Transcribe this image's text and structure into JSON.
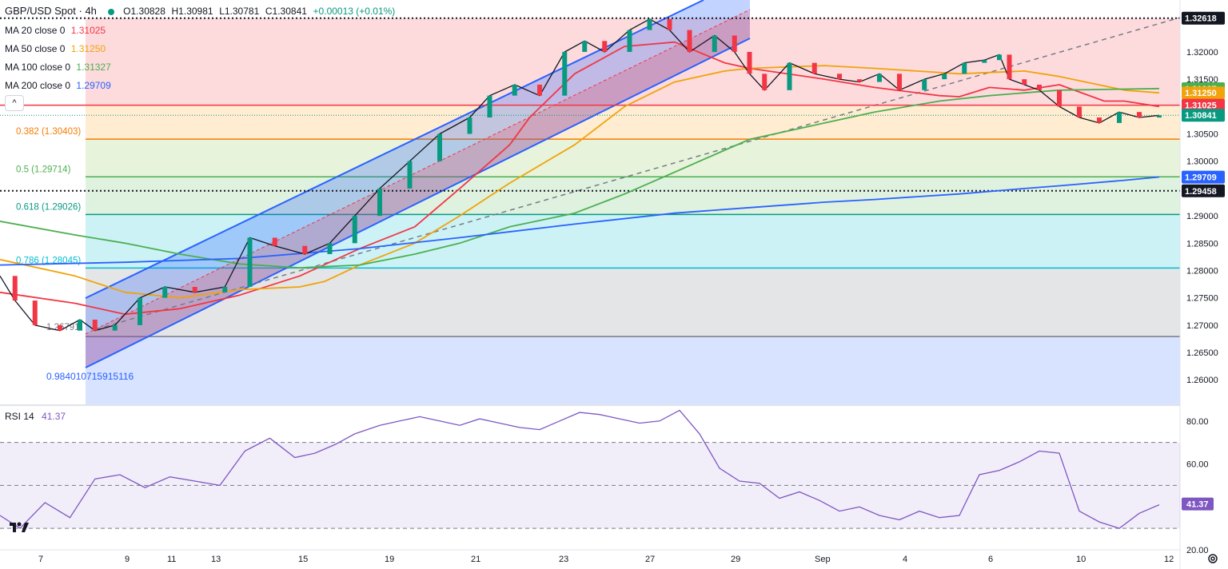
{
  "header": {
    "symbol": "GBP/USD Spot",
    "timeframe": "4h",
    "open": "O1.30828",
    "high": "H1.30981",
    "low": "L1.30781",
    "close": "C1.30841",
    "change": "+0.00013 (+0.01%)"
  },
  "indicators": [
    {
      "label": "MA 20 close 0",
      "value": "1.31025",
      "color": "#f23645"
    },
    {
      "label": "MA 50 close 0",
      "value": "1.31250",
      "color": "#f0a30a"
    },
    {
      "label": "MA 100 close 0",
      "value": "1.31327",
      "color": "#4caf50"
    },
    {
      "label": "MA 200 close 0",
      "value": "1.29709",
      "color": "#2962ff"
    }
  ],
  "collapse_label": "^",
  "rsi": {
    "label": "RSI 14",
    "value": "41.37",
    "color": "#7e57c2"
  },
  "chart_data": {
    "type": "line",
    "y_range": [
      1.2555,
      1.3295
    ],
    "price_ticks": [
      "1.32000",
      "1.31500",
      "1.30500",
      "1.30000",
      "1.29000",
      "1.28500",
      "1.28000",
      "1.27500",
      "1.27000",
      "1.26500",
      "1.26000"
    ],
    "x_ticks": [
      "7",
      "9",
      "11",
      "13",
      "15",
      "19",
      "21",
      "23",
      "27",
      "29",
      "Sep",
      "4",
      "6",
      "10",
      "12"
    ],
    "fib_levels": [
      {
        "ratio": "0.382",
        "label": "0.382 (1.30403)",
        "price": 1.30403,
        "color": "#f57c00"
      },
      {
        "ratio": "0.5",
        "label": "0.5 (1.29714)",
        "price": 1.29714,
        "color": "#4caf50"
      },
      {
        "ratio": "0.618",
        "label": "0.618 (1.29026)",
        "price": 1.29026,
        "color": "#089981"
      },
      {
        "ratio": "0.786",
        "label": "0.786 (1.28045)",
        "price": 1.28045,
        "color": "#00bcd4"
      },
      {
        "ratio": "1",
        "label": "1.26791",
        "price": 1.26791,
        "color": "#787b86"
      }
    ],
    "fib_extension_label": "0.984010715915116",
    "horizontal_lines": [
      {
        "price": 1.32618,
        "style": "dotted",
        "color": "#131722"
      },
      {
        "price": 1.29458,
        "style": "dotted",
        "color": "#131722"
      },
      {
        "price": 1.31025,
        "style": "solid",
        "color": "#f23645"
      }
    ],
    "price_badges": [
      {
        "text": "1.32618",
        "price": 1.32618,
        "bg": "#131722"
      },
      {
        "text": "1.31327",
        "price": 1.31327,
        "bg": "#4caf50"
      },
      {
        "text": "1.31250",
        "price": 1.3125,
        "bg": "#f0a30a"
      },
      {
        "text": "1.31025",
        "price": 1.31025,
        "bg": "#f23645"
      },
      {
        "text": "1.30841",
        "price": 1.30841,
        "bg": "#089981"
      },
      {
        "text": "1.29709",
        "price": 1.29709,
        "bg": "#2962ff"
      },
      {
        "text": "1.29458",
        "price": 1.29458,
        "bg": "#131722"
      }
    ],
    "series": [
      {
        "name": "MA 20 close 0",
        "color": "#f23645",
        "x": [
          0,
          1.5,
          2.5,
          3.6,
          4.8,
          6,
          7.2,
          8.3,
          9.2,
          10.2,
          10.6,
          11.5,
          12.5,
          13.5,
          14.5,
          15,
          16.5,
          17.5,
          18.8,
          19.2,
          19.8,
          20.5,
          21.2,
          22.1,
          22.5,
          23.2
        ],
        "y": [
          1.276,
          1.274,
          1.272,
          1.273,
          1.2755,
          1.279,
          1.284,
          1.288,
          1.295,
          1.303,
          1.308,
          1.316,
          1.321,
          1.3218,
          1.318,
          1.317,
          1.315,
          1.3135,
          1.312,
          1.3118,
          1.3135,
          1.313,
          1.314,
          1.311,
          1.311,
          1.31
        ]
      },
      {
        "name": "MA 50 close 0",
        "color": "#f0a30a",
        "x": [
          0,
          1.5,
          2.5,
          3.6,
          4.8,
          6,
          6.5,
          7.2,
          8.3,
          9.2,
          10.2,
          11.5,
          12.5,
          13.5,
          14.5,
          15,
          16.5,
          17.5,
          19.2,
          20.5,
          21.2,
          22.5,
          23.2
        ],
        "y": [
          1.282,
          1.279,
          1.276,
          1.275,
          1.2765,
          1.277,
          1.278,
          1.281,
          1.285,
          1.29,
          1.296,
          1.303,
          1.31,
          1.3145,
          1.3165,
          1.317,
          1.3175,
          1.317,
          1.316,
          1.3165,
          1.3155,
          1.313,
          1.3125
        ]
      },
      {
        "name": "MA 100 close 0",
        "color": "#4caf50",
        "x": [
          0,
          1.5,
          2.5,
          3.6,
          4.8,
          6,
          7.2,
          8.3,
          9.2,
          10.2,
          11.5,
          12.5,
          13.5,
          14.5,
          15,
          16.5,
          17.5,
          18.8,
          19.8,
          20.5,
          21.2,
          22.5,
          23.2
        ],
        "y": [
          1.289,
          1.2865,
          1.285,
          1.283,
          1.2812,
          1.2805,
          1.281,
          1.283,
          1.285,
          1.288,
          1.2905,
          1.294,
          1.298,
          1.302,
          1.304,
          1.307,
          1.309,
          1.311,
          1.312,
          1.3125,
          1.313,
          1.3132,
          1.3133
        ]
      },
      {
        "name": "MA 200 close 0",
        "color": "#2962ff",
        "x": [
          0,
          2.5,
          4.8,
          7.2,
          9.2,
          11.5,
          13.5,
          15,
          16.5,
          17.5,
          19.2,
          20.5,
          21.2,
          22.5,
          23.2
        ],
        "y": [
          1.281,
          1.2815,
          1.2822,
          1.284,
          1.286,
          1.2885,
          1.2905,
          1.2915,
          1.2925,
          1.293,
          1.294,
          1.295,
          1.2955,
          1.2965,
          1.2971
        ]
      },
      {
        "name": "Price",
        "color": "#131722",
        "x": [
          0,
          0.3,
          0.7,
          1.2,
          1.6,
          1.9,
          2.3,
          2.8,
          3.3,
          3.9,
          4.5,
          5,
          5.5,
          6.1,
          6.6,
          7.1,
          7.6,
          8.2,
          8.8,
          9.4,
          9.8,
          10.3,
          10.8,
          11.3,
          11.7,
          12.1,
          12.6,
          13,
          13.4,
          13.8,
          14.3,
          14.7,
          15,
          15.3,
          15.8,
          16.3,
          16.8,
          17.2,
          17.6,
          18,
          18.5,
          18.9,
          19.3,
          19.7,
          20,
          20.2,
          20.5,
          20.8,
          21.2,
          21.6,
          22,
          22.4,
          22.8,
          23.2
        ],
        "y": [
          1.279,
          1.2745,
          1.27,
          1.269,
          1.271,
          1.269,
          1.27,
          1.275,
          1.277,
          1.276,
          1.277,
          1.286,
          1.2845,
          1.283,
          1.285,
          1.29,
          1.295,
          1.3,
          1.305,
          1.308,
          1.312,
          1.314,
          1.312,
          1.32,
          1.322,
          1.32,
          1.324,
          1.326,
          1.324,
          1.32,
          1.323,
          1.32,
          1.316,
          1.313,
          1.318,
          1.316,
          1.315,
          1.3145,
          1.316,
          1.313,
          1.315,
          1.316,
          1.318,
          1.3185,
          1.3195,
          1.315,
          1.314,
          1.313,
          1.31,
          1.308,
          1.307,
          1.309,
          1.308,
          1.3084
        ]
      }
    ],
    "rsi_range": [
      20,
      87
    ],
    "rsi_ticks": [
      "80.00",
      "60.00",
      "20.00"
    ],
    "rsi_bands": [
      70,
      50,
      30
    ],
    "rsi_badge": {
      "text": "41.37",
      "bg": "#7e57c2"
    },
    "rsi_series": {
      "name": "RSI 14",
      "x": [
        0,
        0.4,
        0.9,
        1.4,
        1.9,
        2.4,
        2.9,
        3.4,
        3.9,
        4.4,
        4.9,
        5.4,
        5.9,
        6.3,
        6.7,
        7.1,
        7.6,
        8.0,
        8.4,
        8.8,
        9.2,
        9.6,
        10.0,
        10.4,
        10.8,
        11.2,
        11.6,
        12.0,
        12.4,
        12.8,
        13.2,
        13.6,
        14.0,
        14.4,
        14.8,
        15.2,
        15.6,
        16.0,
        16.4,
        16.8,
        17.2,
        17.6,
        18.0,
        18.4,
        18.8,
        19.2,
        19.6,
        20.0,
        20.4,
        20.8,
        21.2,
        21.6,
        22.0,
        22.4,
        22.8,
        23.2
      ],
      "y": [
        36,
        30,
        42,
        35,
        53,
        55,
        49,
        54,
        52,
        50,
        66,
        72,
        63,
        65,
        69,
        74,
        78,
        80,
        82,
        80,
        78,
        81,
        79,
        77,
        76,
        80,
        84,
        83,
        81,
        79,
        80,
        85,
        74,
        58,
        52,
        51,
        44,
        47,
        43,
        38,
        40,
        36,
        34,
        38,
        35,
        36,
        55,
        57,
        61,
        66,
        65,
        38,
        33,
        30,
        37,
        41
      ]
    }
  }
}
